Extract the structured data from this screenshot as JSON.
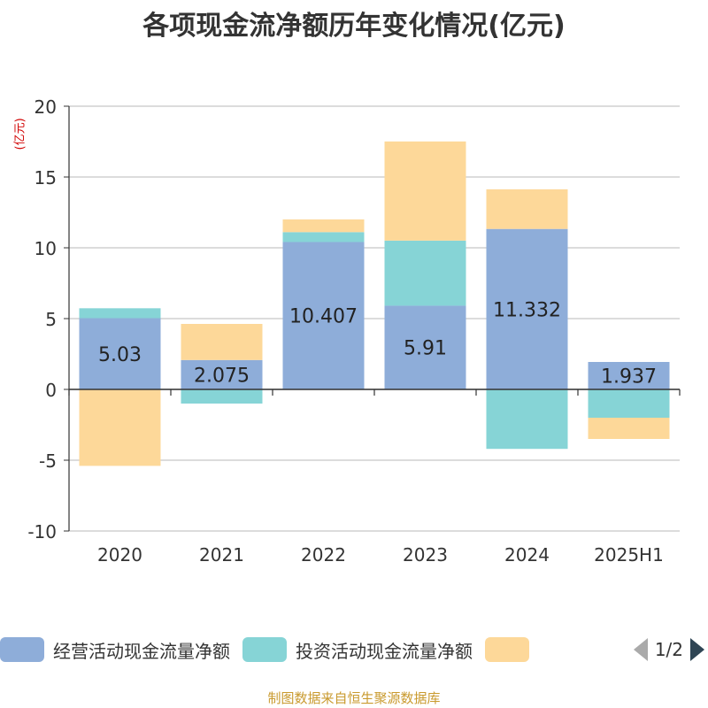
{
  "chart_data": {
    "type": "bar",
    "stacked": true,
    "title": "各项现金流净额历年变化情况(亿元)",
    "unit_label": "(亿元)",
    "categories": [
      "2020",
      "2021",
      "2022",
      "2023",
      "2024",
      "2025H1"
    ],
    "ylim": [
      -10,
      20
    ],
    "yticks": [
      20,
      15,
      10,
      5,
      0,
      -5,
      -10
    ],
    "grid": true,
    "legend_position": "bottom",
    "series": [
      {
        "name": "经营活动现金流量净额",
        "color": "#8eadd9",
        "values": [
          5.03,
          2.075,
          10.407,
          5.91,
          11.332,
          1.937
        ]
      },
      {
        "name": "投资活动现金流量净额",
        "color": "#86d4d6",
        "values": [
          0.7,
          -1.0,
          0.7,
          4.6,
          -4.2,
          -2.0
        ]
      },
      {
        "name": "",
        "color": "#fdd899",
        "values": [
          -5.4,
          2.55,
          0.9,
          7.0,
          2.8,
          -1.5
        ]
      }
    ],
    "data_labels": [
      "5.03",
      "2.075",
      "10.407",
      "5.91",
      "11.332",
      "1.937"
    ]
  },
  "legend": {
    "page_indicator": "1/2"
  },
  "source": "制图数据来自恒生聚源数据库"
}
